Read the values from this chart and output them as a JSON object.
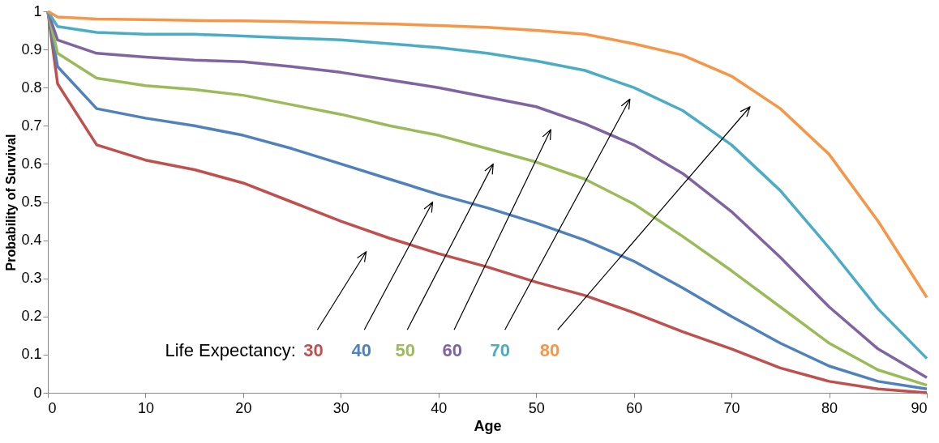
{
  "chart_data": {
    "type": "line",
    "xlabel": "Age",
    "ylabel": "Probability of Survival",
    "x": [
      0,
      1,
      5,
      10,
      15,
      20,
      25,
      30,
      35,
      40,
      45,
      50,
      55,
      60,
      65,
      70,
      75,
      80,
      85,
      90
    ],
    "series": [
      {
        "name": "30",
        "color": "#c0504d",
        "values": [
          1,
          0.81,
          0.65,
          0.61,
          0.585,
          0.55,
          0.5,
          0.45,
          0.405,
          0.365,
          0.33,
          0.29,
          0.255,
          0.21,
          0.16,
          0.115,
          0.065,
          0.03,
          0.01,
          0.0
        ]
      },
      {
        "name": "40",
        "color": "#4f81bd",
        "values": [
          1,
          0.855,
          0.745,
          0.72,
          0.7,
          0.675,
          0.64,
          0.6,
          0.56,
          0.52,
          0.485,
          0.445,
          0.4,
          0.345,
          0.275,
          0.2,
          0.13,
          0.07,
          0.03,
          0.01
        ]
      },
      {
        "name": "50",
        "color": "#9bbb59",
        "values": [
          1,
          0.89,
          0.825,
          0.805,
          0.795,
          0.78,
          0.755,
          0.73,
          0.7,
          0.675,
          0.64,
          0.605,
          0.56,
          0.495,
          0.41,
          0.32,
          0.225,
          0.13,
          0.06,
          0.02
        ]
      },
      {
        "name": "60",
        "color": "#8064a2",
        "values": [
          1,
          0.925,
          0.89,
          0.88,
          0.872,
          0.868,
          0.855,
          0.84,
          0.82,
          0.8,
          0.775,
          0.75,
          0.705,
          0.65,
          0.575,
          0.475,
          0.355,
          0.225,
          0.115,
          0.04
        ]
      },
      {
        "name": "70",
        "color": "#4bacc6",
        "values": [
          1,
          0.96,
          0.945,
          0.94,
          0.94,
          0.935,
          0.93,
          0.925,
          0.915,
          0.905,
          0.89,
          0.87,
          0.845,
          0.8,
          0.74,
          0.65,
          0.53,
          0.38,
          0.22,
          0.09
        ]
      },
      {
        "name": "80",
        "color": "#f79646",
        "values": [
          1,
          0.985,
          0.98,
          0.978,
          0.976,
          0.975,
          0.973,
          0.97,
          0.967,
          0.963,
          0.958,
          0.95,
          0.94,
          0.915,
          0.885,
          0.83,
          0.745,
          0.625,
          0.45,
          0.25
        ]
      }
    ],
    "xlim": [
      0,
      90
    ],
    "xticks": [
      0,
      10,
      20,
      30,
      40,
      50,
      60,
      70,
      80,
      90
    ],
    "ylim": [
      0,
      1
    ],
    "yticks": [
      0,
      0.1,
      0.2,
      0.3,
      0.4,
      0.5,
      0.6,
      0.7,
      0.8,
      0.9,
      1
    ],
    "annotations": [
      "Life Expectancy:"
    ],
    "grid": false,
    "marker": "none",
    "line_style": "solid"
  }
}
